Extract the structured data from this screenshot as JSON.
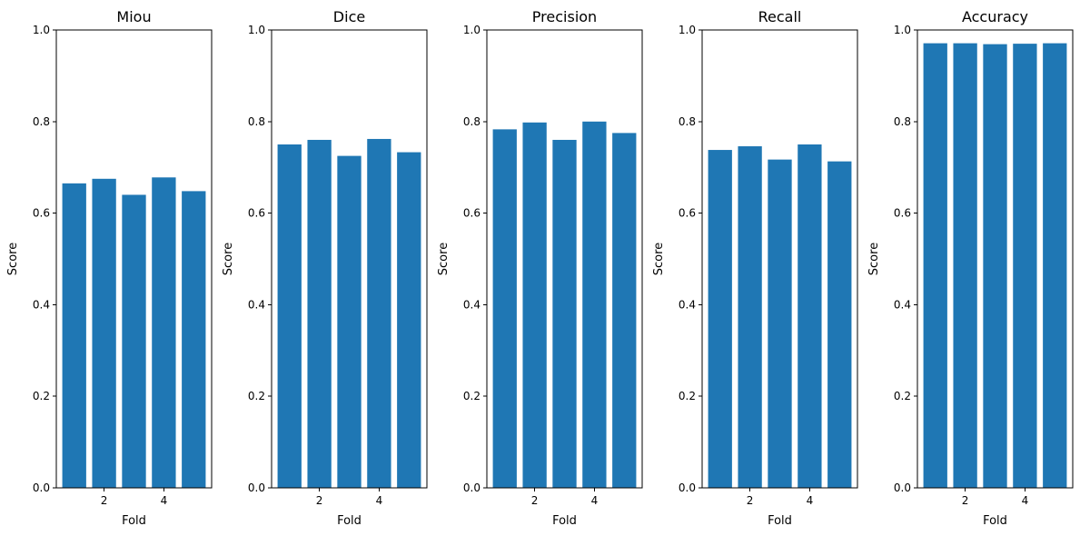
{
  "chart_data": [
    {
      "type": "bar",
      "title": "Miou",
      "xlabel": "Fold",
      "ylabel": "Score",
      "x": [
        1,
        2,
        3,
        4,
        5
      ],
      "values": [
        0.665,
        0.675,
        0.64,
        0.678,
        0.648
      ],
      "xticks": [
        "2",
        "4"
      ],
      "xtick_values": [
        2,
        4
      ],
      "yticks": [
        "0.0",
        "0.2",
        "0.4",
        "0.6",
        "0.8",
        "1.0"
      ],
      "ytick_values": [
        0,
        0.2,
        0.4,
        0.6,
        0.8,
        1.0
      ],
      "ylim": [
        0,
        1
      ],
      "xlim": [
        0.4,
        5.6
      ],
      "grid": false,
      "bar_color": "#1f77b4"
    },
    {
      "type": "bar",
      "title": "Dice",
      "xlabel": "Fold",
      "ylabel": "Score",
      "x": [
        1,
        2,
        3,
        4,
        5
      ],
      "values": [
        0.75,
        0.76,
        0.725,
        0.762,
        0.733
      ],
      "xticks": [
        "2",
        "4"
      ],
      "xtick_values": [
        2,
        4
      ],
      "yticks": [
        "0.0",
        "0.2",
        "0.4",
        "0.6",
        "0.8",
        "1.0"
      ],
      "ytick_values": [
        0,
        0.2,
        0.4,
        0.6,
        0.8,
        1.0
      ],
      "ylim": [
        0,
        1
      ],
      "xlim": [
        0.4,
        5.6
      ],
      "grid": false,
      "bar_color": "#1f77b4"
    },
    {
      "type": "bar",
      "title": "Precision",
      "xlabel": "Fold",
      "ylabel": "Score",
      "x": [
        1,
        2,
        3,
        4,
        5
      ],
      "values": [
        0.783,
        0.798,
        0.76,
        0.8,
        0.775
      ],
      "xticks": [
        "2",
        "4"
      ],
      "xtick_values": [
        2,
        4
      ],
      "yticks": [
        "0.0",
        "0.2",
        "0.4",
        "0.6",
        "0.8",
        "1.0"
      ],
      "ytick_values": [
        0,
        0.2,
        0.4,
        0.6,
        0.8,
        1.0
      ],
      "ylim": [
        0,
        1
      ],
      "xlim": [
        0.4,
        5.6
      ],
      "grid": false,
      "bar_color": "#1f77b4"
    },
    {
      "type": "bar",
      "title": "Recall",
      "xlabel": "Fold",
      "ylabel": "Score",
      "x": [
        1,
        2,
        3,
        4,
        5
      ],
      "values": [
        0.738,
        0.746,
        0.717,
        0.75,
        0.713
      ],
      "xticks": [
        "2",
        "4"
      ],
      "xtick_values": [
        2,
        4
      ],
      "yticks": [
        "0.0",
        "0.2",
        "0.4",
        "0.6",
        "0.8",
        "1.0"
      ],
      "ytick_values": [
        0,
        0.2,
        0.4,
        0.6,
        0.8,
        1.0
      ],
      "ylim": [
        0,
        1
      ],
      "xlim": [
        0.4,
        5.6
      ],
      "grid": false,
      "bar_color": "#1f77b4"
    },
    {
      "type": "bar",
      "title": "Accuracy",
      "xlabel": "Fold",
      "ylabel": "Score",
      "x": [
        1,
        2,
        3,
        4,
        5
      ],
      "values": [
        0.971,
        0.971,
        0.969,
        0.97,
        0.971
      ],
      "xticks": [
        "2",
        "4"
      ],
      "xtick_values": [
        2,
        4
      ],
      "yticks": [
        "0.0",
        "0.2",
        "0.4",
        "0.6",
        "0.8",
        "1.0"
      ],
      "ytick_values": [
        0,
        0.2,
        0.4,
        0.6,
        0.8,
        1.0
      ],
      "ylim": [
        0,
        1
      ],
      "xlim": [
        0.4,
        5.6
      ],
      "grid": false,
      "bar_color": "#1f77b4"
    }
  ]
}
